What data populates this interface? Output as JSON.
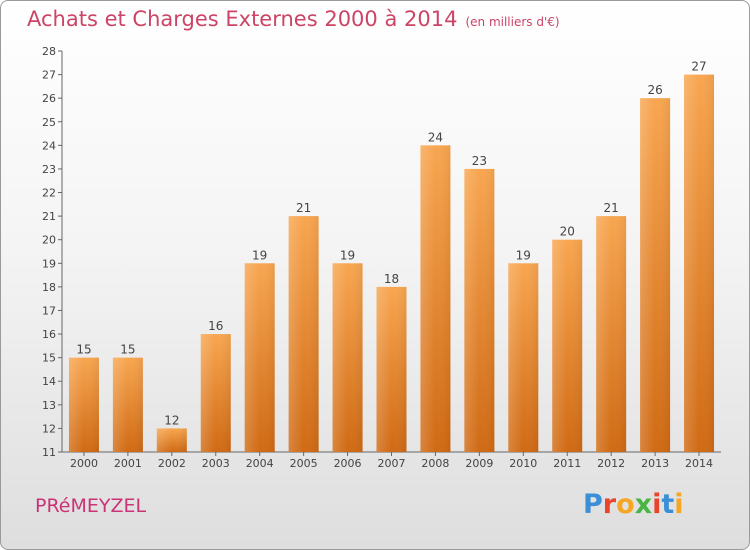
{
  "header": {
    "title": "Achats et Charges Externes 2000 à 2014",
    "unit": "(en milliers d'€)"
  },
  "footer": {
    "commune": "PRéMEYZEL",
    "logo": "Proxiti",
    "logo_colors": [
      "#3b8fd6",
      "#e8452c",
      "#f5a623",
      "#4bb543",
      "#e8452c",
      "#3b8fd6",
      "#f5a623"
    ]
  },
  "chart_data": {
    "type": "bar",
    "title": "Achats et Charges Externes 2000 à 2014",
    "categories": [
      "2000",
      "2001",
      "2002",
      "2003",
      "2004",
      "2005",
      "2006",
      "2007",
      "2008",
      "2009",
      "2010",
      "2011",
      "2012",
      "2013",
      "2014"
    ],
    "values": [
      15,
      15,
      12,
      16,
      19,
      21,
      19,
      18,
      24,
      23,
      19,
      20,
      21,
      26,
      27
    ],
    "ylim": [
      11,
      28
    ],
    "yticks": [
      11,
      12,
      13,
      14,
      15,
      16,
      17,
      18,
      19,
      20,
      21,
      22,
      23,
      24,
      25,
      26,
      27,
      28
    ],
    "grid": false,
    "bar_color": "#f09a40"
  }
}
